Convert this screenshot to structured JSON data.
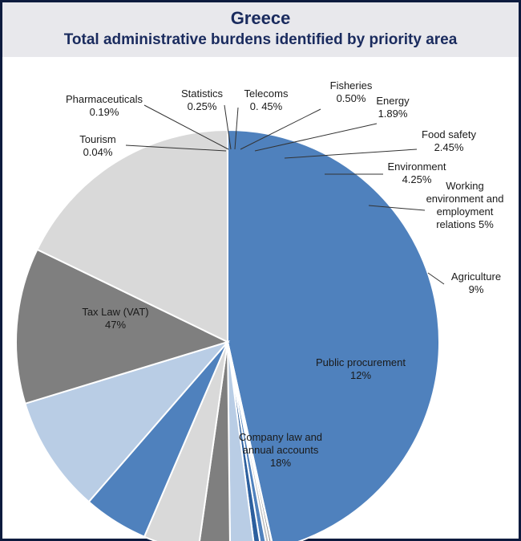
{
  "header": {
    "title": "Greece",
    "subtitle": "Total administrative burdens identified by priority area"
  },
  "chart_data": {
    "type": "pie",
    "title": "Greece",
    "subtitle": "Total administrative burdens identified by priority area",
    "slices": [
      {
        "name": "Tax Law (VAT)",
        "value": 47,
        "label": "47%",
        "color": "#4f81bd"
      },
      {
        "name": "Tourism",
        "value": 0.04,
        "label": "0.04%",
        "color": "#d9d9d9"
      },
      {
        "name": "Pharmaceuticals",
        "value": 0.19,
        "label": "0.19%",
        "color": "#7f7f7f"
      },
      {
        "name": "Statistics",
        "value": 0.25,
        "label": "0.25%",
        "color": "#bfbfbf"
      },
      {
        "name": "Telecoms",
        "value": 0.45,
        "label": "0. 45%",
        "color": "#4f81bd"
      },
      {
        "name": "Fisheries",
        "value": 0.5,
        "label": "0.50%",
        "color": "#2c5f9e"
      },
      {
        "name": "Energy",
        "value": 1.89,
        "label": "1.89%",
        "color": "#b9cde5"
      },
      {
        "name": "Food safety",
        "value": 2.45,
        "label": "2.45%",
        "color": "#7f7f7f"
      },
      {
        "name": "Environment",
        "value": 4.25,
        "label": "4.25%",
        "color": "#d9d9d9"
      },
      {
        "name": "Working environment and employment relations",
        "value": 5,
        "label": "5%",
        "color": "#4f81bd"
      },
      {
        "name": "Agriculture",
        "value": 9,
        "label": "9%",
        "color": "#b9cde5"
      },
      {
        "name": "Public procurement",
        "value": 12,
        "label": "12%",
        "color": "#7f7f7f"
      },
      {
        "name": "Company law and annual accounts",
        "value": 18,
        "label": "18%",
        "color": "#d9d9d9"
      }
    ]
  }
}
